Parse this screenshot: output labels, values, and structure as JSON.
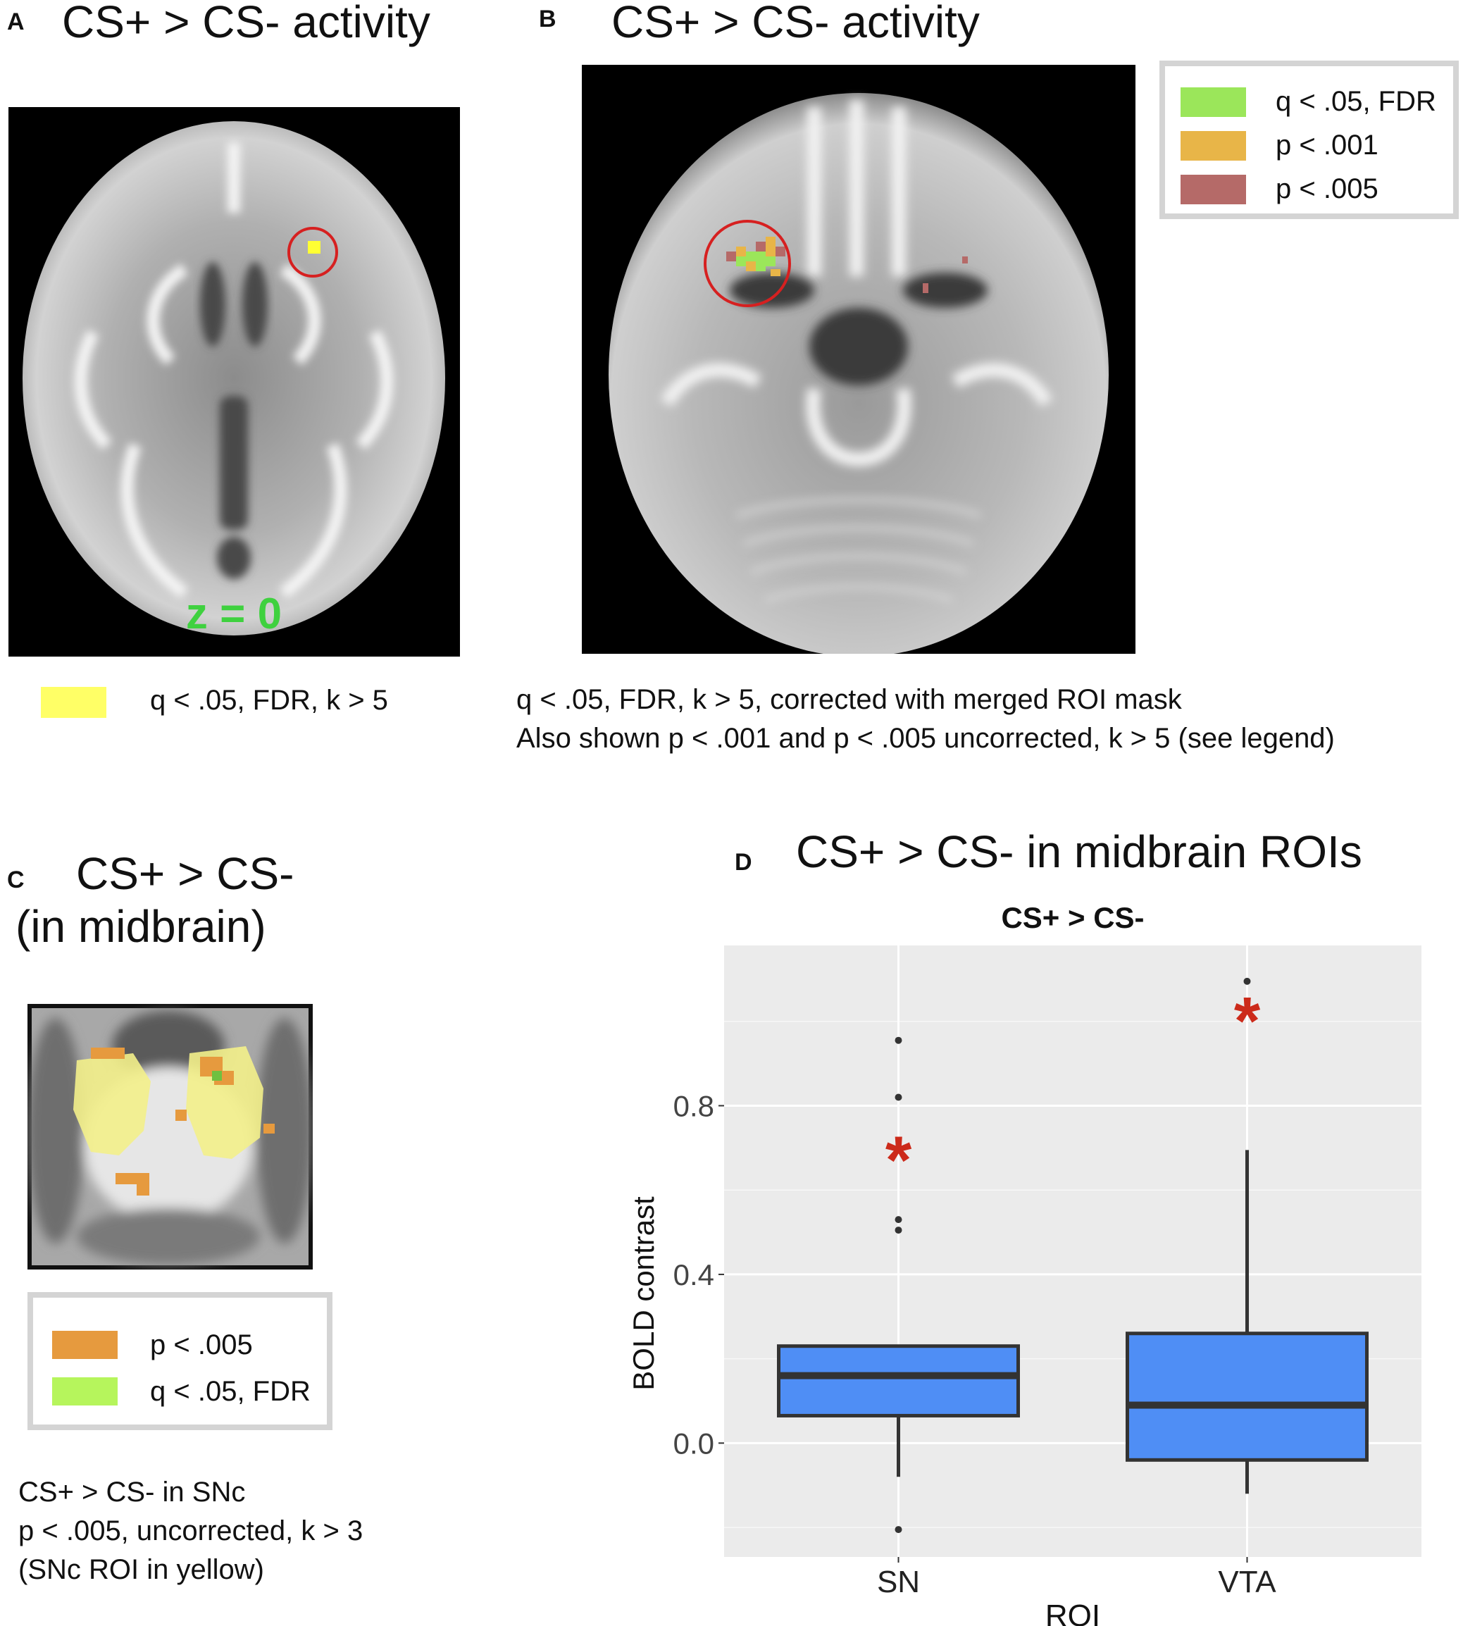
{
  "panels": {
    "a": {
      "letter": "A",
      "title": "CS+ > CS- activity",
      "slice_label": "z = 0",
      "legend": {
        "label": "q < .05, FDR, k > 5",
        "color": "#ffff66"
      }
    },
    "b": {
      "letter": "B",
      "title": "CS+ > CS- activity",
      "legend": [
        {
          "label": "q < .05, FDR",
          "color": "#9be65a"
        },
        {
          "label": "p < .001",
          "color": "#e8b548"
        },
        {
          "label": "p < .005",
          "color": "#b56a68"
        }
      ],
      "caption_lines": [
        "q < .05, FDR, k > 5, corrected with merged ROI mask",
        "Also shown p < .001 and p < .005 uncorrected, k > 5 (see legend)"
      ]
    },
    "c": {
      "letter": "C",
      "title_lines": [
        "CS+ > CS-",
        "(in midbrain)"
      ],
      "legend": [
        {
          "label": "p < .005",
          "color": "#e69a3e"
        },
        {
          "label": "q < .05, FDR",
          "color": "#b6f55c"
        }
      ],
      "caption_lines": [
        "CS+ > CS- in SNc",
        "p < .005, uncorrected, k > 3",
        "(SNc ROI in yellow)"
      ]
    },
    "d": {
      "letter": "D",
      "title": "CS+ > CS- in midbrain ROIs"
    }
  },
  "chart_data": {
    "type": "box",
    "title": "CS+ > CS-",
    "xlabel": "ROI",
    "ylabel": "BOLD contrast",
    "categories": [
      "SN",
      "VTA"
    ],
    "yticks": [
      0.0,
      0.4,
      0.8
    ],
    "ytick_labels": [
      "0.0",
      "0.4",
      "0.8"
    ],
    "ylim": [
      -0.27,
      1.18
    ],
    "grid": true,
    "box_color": "#4f8ef5",
    "significance_marker": "*",
    "significance_color": "#cc2a1a",
    "boxes": [
      {
        "category": "SN",
        "q1": 0.065,
        "median": 0.16,
        "q3": 0.23,
        "whisker_low": -0.08,
        "whisker_high": 0.23,
        "outliers": [
          -0.205,
          0.505,
          0.53,
          0.82,
          0.955
        ],
        "significant": true,
        "marker_y": 0.68
      },
      {
        "category": "VTA",
        "q1": -0.04,
        "median": 0.09,
        "q3": 0.26,
        "whisker_low": -0.12,
        "whisker_high": 0.695,
        "outliers": [
          1.095
        ],
        "significant": true,
        "marker_y": 1.01
      }
    ]
  }
}
